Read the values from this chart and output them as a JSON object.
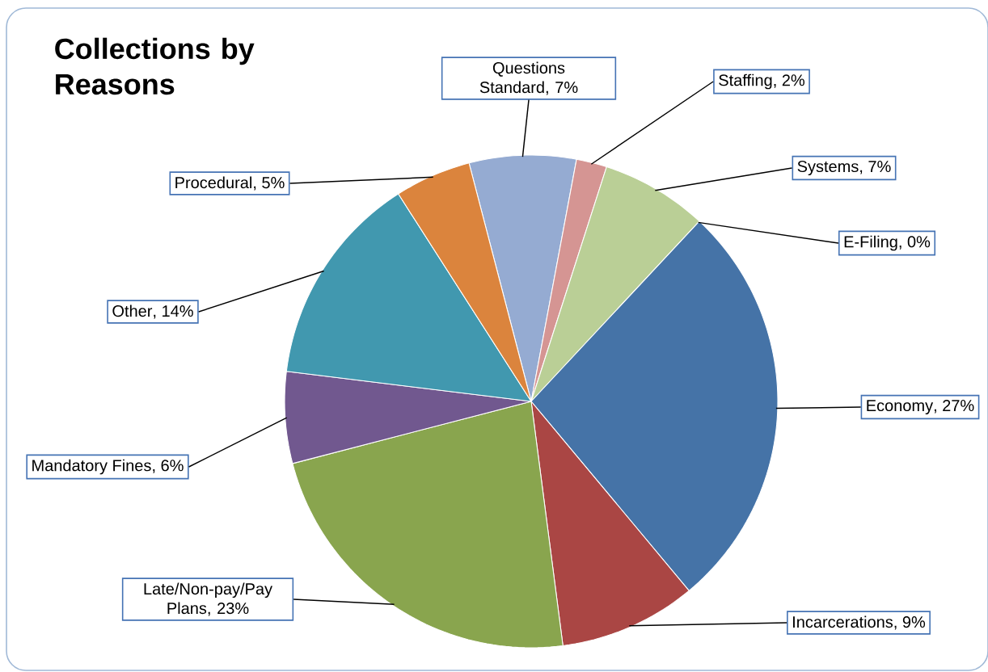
{
  "chart_data": {
    "type": "pie",
    "title": "Collections by Reasons",
    "categories": [
      "Questions Standard",
      "Staffing",
      "Systems",
      "E-Filing",
      "Economy",
      "Incarcerations",
      "Late/Non-pay/Pay Plans",
      "Mandatory Fines",
      "Other",
      "Procedural"
    ],
    "values": [
      7,
      2,
      7,
      0,
      27,
      9,
      23,
      6,
      14,
      5
    ],
    "value_labels": [
      ", 7%",
      ", 2%",
      ", 7%",
      ", 0%",
      ", 27%",
      ", 9%",
      ", 23%",
      ", 6%",
      ", 14%",
      ", 5%"
    ],
    "colors": [
      "#95abd2",
      "#d59593",
      "#bacf96",
      "#4573a7",
      "#4573a7",
      "#aa4644",
      "#89a54e",
      "#71588f",
      "#4198af",
      "#db843d"
    ]
  }
}
